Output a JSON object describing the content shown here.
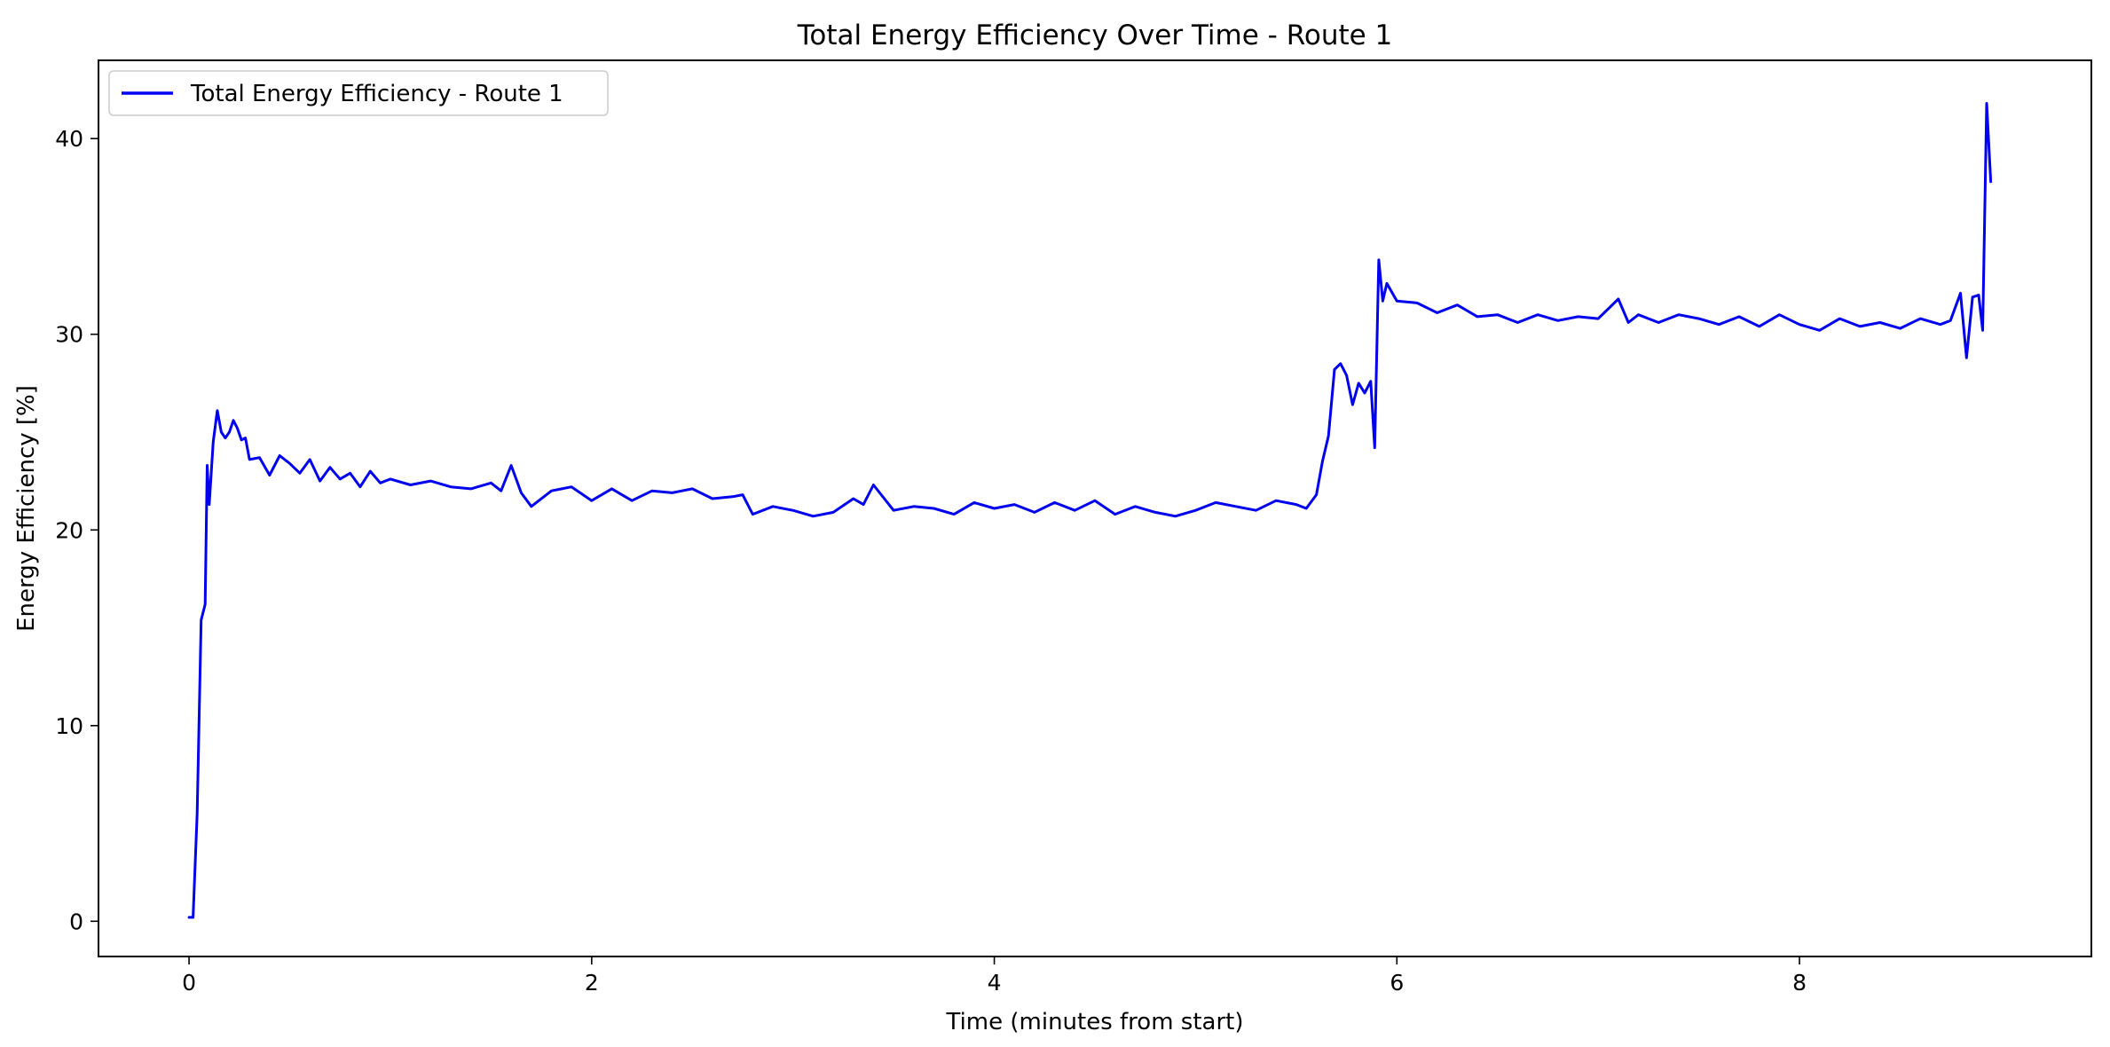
{
  "chart_data": {
    "type": "line",
    "title": "Total Energy Efficiency Over Time - Route 1",
    "xlabel": "Time (minutes from start)",
    "ylabel": "Energy Efficiency [%]",
    "xlim": [
      -0.45,
      9.45
    ],
    "ylim": [
      -1.8,
      44.0
    ],
    "xticks": [
      0,
      2,
      4,
      6,
      8
    ],
    "xtick_labels": [
      "0",
      "2",
      "4",
      "6",
      "8"
    ],
    "yticks": [
      0,
      10,
      20,
      30,
      40
    ],
    "ytick_labels": [
      "0",
      "10",
      "20",
      "30",
      "40"
    ],
    "grid": false,
    "legend": {
      "placement": "top-left"
    },
    "series": [
      {
        "name": "Total Energy Efficiency - Route 1",
        "color": "#0000ee",
        "x": [
          0.0,
          0.02,
          0.04,
          0.06,
          0.08,
          0.09,
          0.1,
          0.12,
          0.14,
          0.16,
          0.18,
          0.2,
          0.22,
          0.24,
          0.26,
          0.28,
          0.3,
          0.35,
          0.4,
          0.45,
          0.5,
          0.55,
          0.6,
          0.65,
          0.7,
          0.75,
          0.8,
          0.85,
          0.9,
          0.95,
          1.0,
          1.1,
          1.2,
          1.3,
          1.4,
          1.5,
          1.55,
          1.6,
          1.65,
          1.7,
          1.8,
          1.9,
          2.0,
          2.1,
          2.2,
          2.3,
          2.4,
          2.5,
          2.6,
          2.7,
          2.75,
          2.8,
          2.9,
          3.0,
          3.1,
          3.2,
          3.3,
          3.35,
          3.4,
          3.5,
          3.6,
          3.7,
          3.8,
          3.9,
          4.0,
          4.1,
          4.2,
          4.3,
          4.4,
          4.5,
          4.6,
          4.7,
          4.8,
          4.9,
          5.0,
          5.1,
          5.2,
          5.3,
          5.4,
          5.5,
          5.55,
          5.6,
          5.63,
          5.66,
          5.69,
          5.72,
          5.75,
          5.78,
          5.81,
          5.84,
          5.87,
          5.89,
          5.91,
          5.93,
          5.95,
          6.0,
          6.1,
          6.2,
          6.3,
          6.4,
          6.5,
          6.6,
          6.7,
          6.8,
          6.9,
          7.0,
          7.1,
          7.15,
          7.2,
          7.3,
          7.4,
          7.5,
          7.6,
          7.7,
          7.8,
          7.9,
          8.0,
          8.1,
          8.2,
          8.3,
          8.4,
          8.5,
          8.6,
          8.7,
          8.75,
          8.8,
          8.83,
          8.86,
          8.89,
          8.91,
          8.93,
          8.95
        ],
        "y": [
          0.2,
          0.2,
          5.5,
          15.4,
          16.2,
          23.3,
          21.3,
          24.5,
          26.1,
          25.0,
          24.7,
          25.0,
          25.6,
          25.2,
          24.6,
          24.7,
          23.6,
          23.7,
          22.8,
          23.8,
          23.4,
          22.9,
          23.6,
          22.5,
          23.2,
          22.6,
          22.9,
          22.2,
          23.0,
          22.4,
          22.6,
          22.3,
          22.5,
          22.2,
          22.1,
          22.4,
          22.0,
          23.3,
          21.9,
          21.2,
          22.0,
          22.2,
          21.5,
          22.1,
          21.5,
          22.0,
          21.9,
          22.1,
          21.6,
          21.7,
          21.8,
          20.8,
          21.2,
          21.0,
          20.7,
          20.9,
          21.6,
          21.3,
          22.3,
          21.0,
          21.2,
          21.1,
          20.8,
          21.4,
          21.1,
          21.3,
          20.9,
          21.4,
          21.0,
          21.5,
          20.8,
          21.2,
          20.9,
          20.7,
          21.0,
          21.4,
          21.2,
          21.0,
          21.5,
          21.3,
          21.1,
          21.8,
          23.5,
          24.8,
          28.2,
          28.5,
          27.9,
          26.4,
          27.5,
          27.0,
          27.6,
          24.2,
          33.8,
          31.7,
          32.6,
          31.7,
          31.6,
          31.1,
          31.5,
          30.9,
          31.0,
          30.6,
          31.0,
          30.7,
          30.9,
          30.8,
          31.8,
          30.6,
          31.0,
          30.6,
          31.0,
          30.8,
          30.5,
          30.9,
          30.4,
          31.0,
          30.5,
          30.2,
          30.8,
          30.4,
          30.6,
          30.3,
          30.8,
          30.5,
          30.7,
          32.1,
          28.8,
          31.9,
          32.0,
          30.2,
          41.8,
          37.8
        ]
      }
    ]
  }
}
